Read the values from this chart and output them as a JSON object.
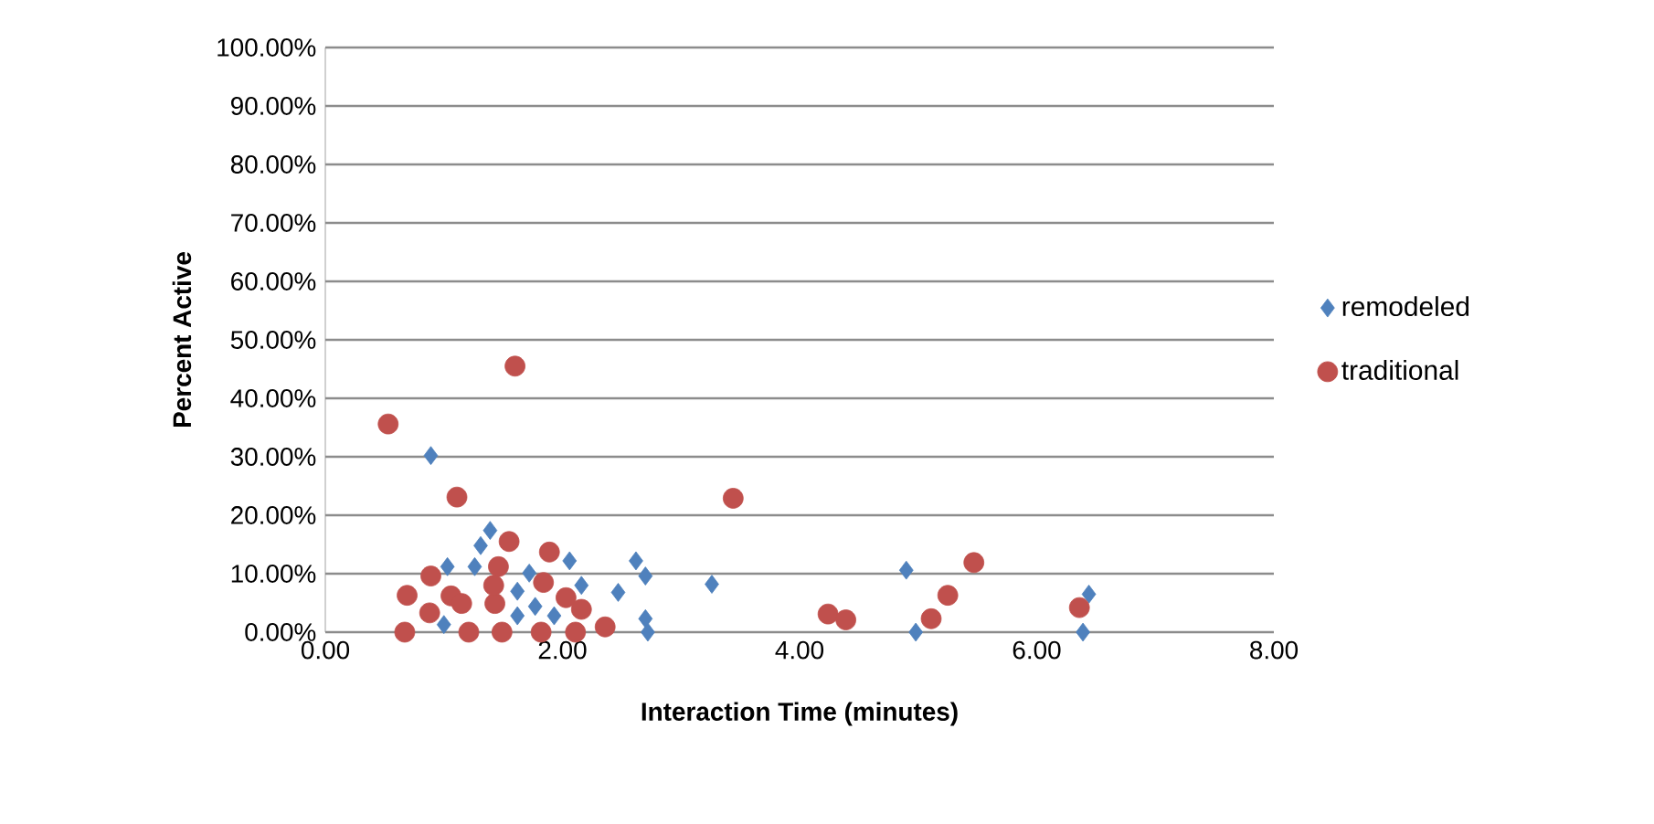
{
  "chart_data": {
    "type": "scatter",
    "xlabel": "Interaction Time (minutes)",
    "ylabel": "Percent Active",
    "xlim": [
      0,
      8
    ],
    "ylim": [
      0,
      100
    ],
    "xticks": [
      {
        "value": 0,
        "label": "0.00"
      },
      {
        "value": 2,
        "label": "2.00"
      },
      {
        "value": 4,
        "label": "4.00"
      },
      {
        "value": 6,
        "label": "6.00"
      },
      {
        "value": 8,
        "label": "8.00"
      }
    ],
    "yticks": [
      {
        "value": 0,
        "label": "0.00%"
      },
      {
        "value": 10,
        "label": "10.00%"
      },
      {
        "value": 20,
        "label": "20.00%"
      },
      {
        "value": 30,
        "label": "30.00%"
      },
      {
        "value": 40,
        "label": "40.00%"
      },
      {
        "value": 50,
        "label": "50.00%"
      },
      {
        "value": 60,
        "label": "60.00%"
      },
      {
        "value": 70,
        "label": "70.00%"
      },
      {
        "value": 80,
        "label": "80.00%"
      },
      {
        "value": 90,
        "label": "90.00%"
      },
      {
        "value": 100,
        "label": "100.00%"
      }
    ],
    "grid": "y",
    "legend": "right",
    "series": [
      {
        "name": "remodeled",
        "color": "#4f81bd",
        "marker": "diamond",
        "x": [
          3.26,
          4.9,
          4.98,
          6.44,
          6.39,
          0.89,
          1.39,
          1.31,
          1.03,
          2.62,
          2.7,
          2.47,
          2.06,
          2.16,
          1.62,
          1.72,
          1.26,
          1.77,
          1.62,
          2.7,
          2.72,
          1.0,
          1.93
        ],
        "values": [
          8.2,
          10.6,
          0,
          6.5,
          0,
          30.2,
          17.4,
          14.8,
          11.2,
          12.2,
          9.6,
          6.8,
          12.2,
          8,
          7,
          10.1,
          11.2,
          4.4,
          2.8,
          2.3,
          0,
          1.3,
          2.8
        ]
      },
      {
        "name": "traditional",
        "color": "#c0504d",
        "marker": "circle",
        "x": [
          1.6,
          0.53,
          1.11,
          1.55,
          1.89,
          1.46,
          0.89,
          0.69,
          1.84,
          1.06,
          1.15,
          0.88,
          1.43,
          2.03,
          2.16,
          2.36,
          0.67,
          1.21,
          1.49,
          1.82,
          2.11,
          1.42,
          3.44,
          4.24,
          4.39,
          5.47,
          5.25,
          5.11,
          6.36
        ],
        "values": [
          45.5,
          35.6,
          23.1,
          15.5,
          13.7,
          11.2,
          9.6,
          6.3,
          8.5,
          6.2,
          4.9,
          3.3,
          4.9,
          5.9,
          3.9,
          0.9,
          0,
          0,
          0,
          0,
          0,
          8,
          22.9,
          3.1,
          2.1,
          11.9,
          6.3,
          2.3,
          4.2
        ]
      }
    ]
  }
}
